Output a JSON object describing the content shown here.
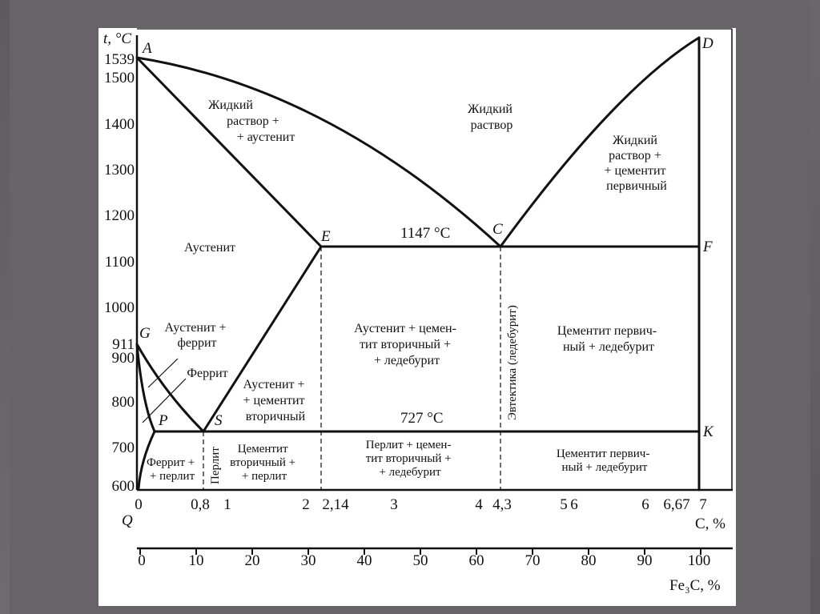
{
  "y_axis": {
    "label": "t, °C",
    "ticks": [
      "1539",
      "1500",
      "1400",
      "1300",
      "1200",
      "1100",
      "1000",
      "911",
      "900",
      "800",
      "700",
      "600"
    ]
  },
  "x_axis_carbon": {
    "label": "C, %",
    "origin_label": "Q",
    "ticks": [
      "0",
      "0,8",
      "1",
      "2",
      "2,14",
      "3",
      "4",
      "4,3",
      "5",
      "6",
      "6",
      "6,67",
      "7"
    ]
  },
  "x_axis_cementite": {
    "label": "Fe₃C, %",
    "ticks": [
      "0",
      "10",
      "20",
      "30",
      "40",
      "50",
      "60",
      "70",
      "80",
      "90",
      "100"
    ]
  },
  "points": {
    "A": "A",
    "D": "D",
    "E": "E",
    "C": "C",
    "F": "F",
    "G": "G",
    "P": "P",
    "S": "S",
    "K": "K"
  },
  "temperatures": {
    "eutectic": "1147 °C",
    "eutectoid": "727 °C"
  },
  "regions": {
    "liquid_austenite": [
      "Жидкий",
      "раствор +",
      "+ аустенит"
    ],
    "liquid": [
      "Жидкий",
      "раствор"
    ],
    "liquid_cementite": [
      "Жидкий",
      "раствор +",
      "+ цементит",
      "первичный"
    ],
    "austenite": "Аустенит",
    "austenite_ferrite": [
      "Аустенит +",
      "феррит"
    ],
    "ferrite": "Феррит",
    "austenite_cementite2": [
      "Аустенит +",
      "+ цементит",
      "вторичный"
    ],
    "austenite_cementite_ledeburite": [
      "Аустенит + цемен-",
      "тит вторичный +",
      "+ ледебурит"
    ],
    "cementite1_ledeburite_upper": [
      "Цементит первич-",
      "ный + ледебурит"
    ],
    "eutectic_line": "Эвтектика (ледебурит)",
    "ferrite_pearlite": [
      "Феррит +",
      "+ перлит"
    ],
    "pearlite": "Перлит",
    "cementite2_pearlite": [
      "Цементит",
      "вторичный +",
      "+ перлит"
    ],
    "pearlite_cementite_ledeburite": [
      "Перлит + цемен-",
      "тит вторичный +",
      "+ ледебурит"
    ],
    "cementite1_ledeburite_lower": [
      "Цементит первич-",
      "ный + ледебурит"
    ]
  }
}
